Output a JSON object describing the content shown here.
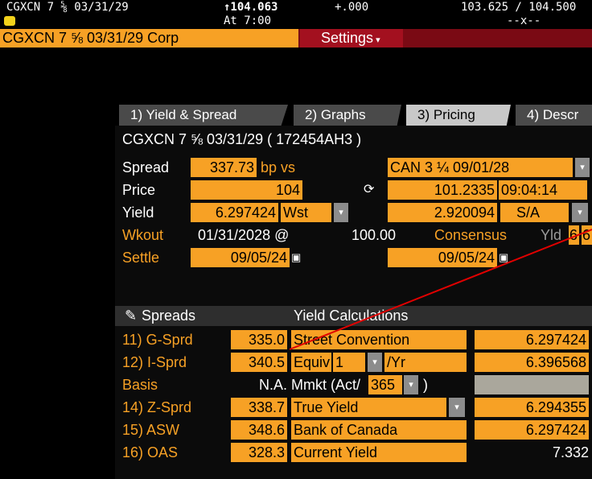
{
  "header": {
    "security": "CGXCN 7 ⅝ 03/31/29",
    "price": "↑104.063",
    "change": "+.000",
    "bid_ask": "103.625 / 104.500",
    "time": "At 7:00",
    "size": "--x--",
    "ticker_bar": "CGXCN 7 ⅝ 03/31/29 Corp",
    "settings": "Settings"
  },
  "tabs": [
    "1) Yield & Spread",
    "2) Graphs",
    "3) Pricing",
    "4) Descr"
  ],
  "panel": {
    "title": "CGXCN 7 ⅝ 03/31/29 ( 172454AH3 )",
    "spread": {
      "label": "Spread",
      "value": "337.73",
      "unit": "bp  vs",
      "benchmark": "CAN 3 ¼ 09/01/28"
    },
    "price": {
      "label": "Price",
      "value": "104",
      "bench_price": "101.2335",
      "time": "09:04:14"
    },
    "yield": {
      "label": "Yield",
      "value": "6.297424",
      "type": "Wst",
      "bench_yield": "2.920094",
      "freq": "S/A"
    },
    "workout": {
      "label": "Wkout",
      "date": "01/31/2028 @",
      "price": "100.00",
      "consensus": "Consensus",
      "yld": "Yld",
      "c1": "6",
      "c2": "6"
    },
    "settle": {
      "label": "Settle",
      "date": "09/05/24",
      "bench_date": "09/05/24"
    }
  },
  "spreads": {
    "header": "Spreads",
    "rows": [
      {
        "label": "11) G-Sprd",
        "value": "335.0"
      },
      {
        "label": "12) I-Sprd",
        "value": "340.5"
      },
      {
        "label": "Basis",
        "value": "N.A."
      },
      {
        "label": "14) Z-Sprd",
        "value": "338.7"
      },
      {
        "label": "15) ASW",
        "value": "348.6"
      },
      {
        "label": "16) OAS",
        "value": "328.3"
      }
    ]
  },
  "yield_calc": {
    "header": "Yield Calculations",
    "rows": [
      {
        "label": "Street Convention",
        "value": "6.297424"
      },
      {
        "label": "Equiv",
        "option": "1",
        "suffix": "/Yr",
        "value": "6.396568"
      },
      {
        "label": "Mmkt (Act/",
        "option": "365",
        "suffix": ")"
      },
      {
        "label": "True Yield",
        "value": "6.294355"
      },
      {
        "label": "Bank of Canada",
        "value": "6.297424"
      },
      {
        "label": "Current Yield",
        "value": "7.332"
      }
    ]
  }
}
